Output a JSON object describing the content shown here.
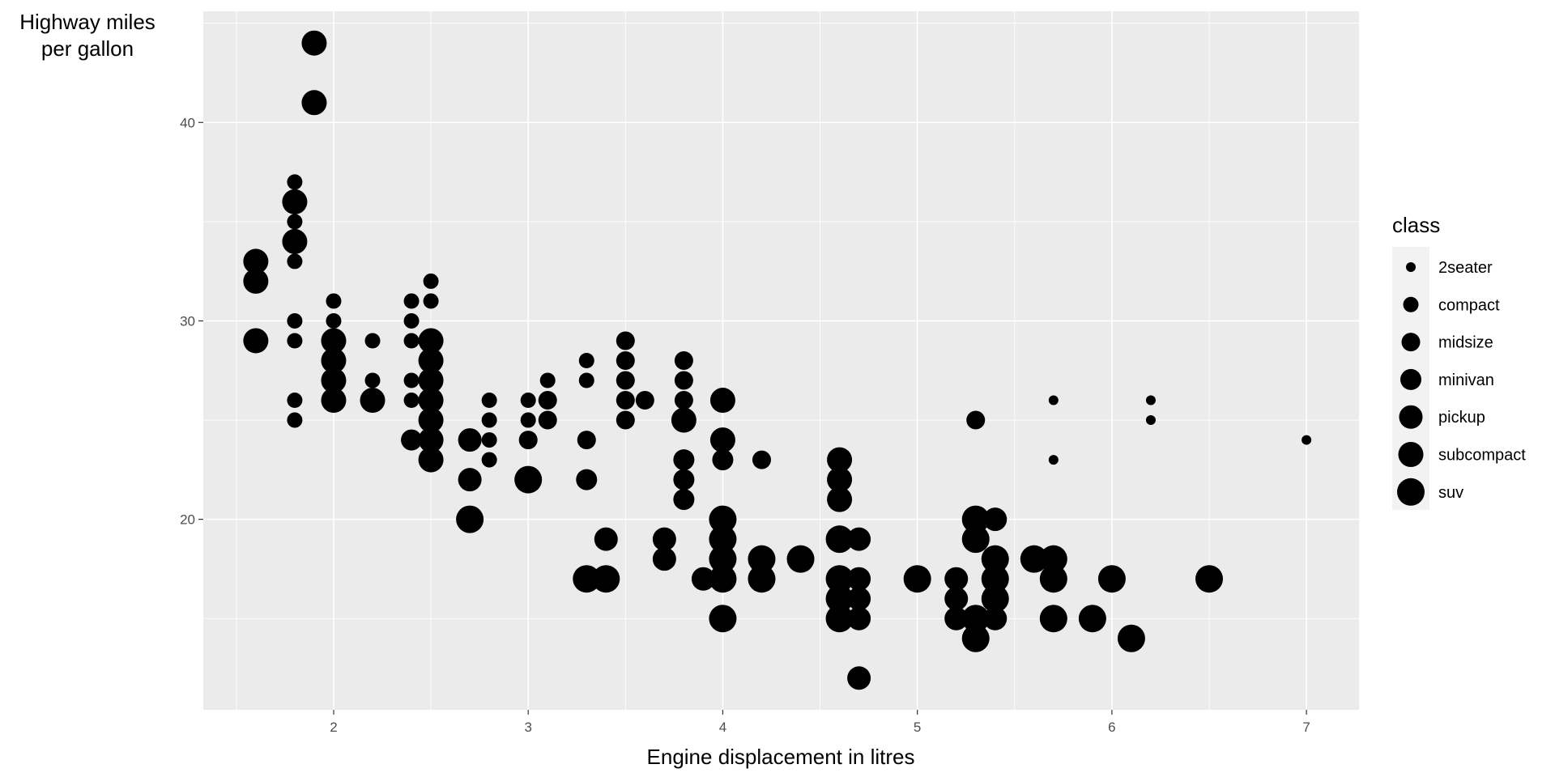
{
  "chart_data": {
    "type": "scatter",
    "title": "",
    "xlabel": "Engine displacement in litres",
    "ylabel_lines": [
      "Highway miles",
      "per gallon"
    ],
    "xlim": [
      1.33,
      7.27
    ],
    "ylim": [
      10.4,
      45.6
    ],
    "xticks": [
      2,
      3,
      4,
      5,
      6,
      7
    ],
    "yticks": [
      20,
      30,
      40
    ],
    "grid": true,
    "size_legend": {
      "title": "class",
      "placement": "right",
      "entries": [
        "2seater",
        "compact",
        "midsize",
        "minivan",
        "pickup",
        "subcompact",
        "suv"
      ]
    },
    "colors": {
      "panel": "#ebebeb",
      "point": "#000000",
      "grid": "#ffffff",
      "tick": "#4d4d4d"
    },
    "points": [
      [
        1.6,
        33,
        "subcompact"
      ],
      [
        1.6,
        32,
        "subcompact"
      ],
      [
        1.6,
        29,
        "subcompact"
      ],
      [
        1.8,
        29,
        "compact"
      ],
      [
        1.8,
        26,
        "compact"
      ],
      [
        1.8,
        25,
        "compact"
      ],
      [
        1.8,
        37,
        "compact"
      ],
      [
        1.8,
        35,
        "compact"
      ],
      [
        1.8,
        33,
        "compact"
      ],
      [
        1.8,
        30,
        "compact"
      ],
      [
        1.8,
        36,
        "subcompact"
      ],
      [
        1.8,
        34,
        "subcompact"
      ],
      [
        1.9,
        44,
        "subcompact"
      ],
      [
        1.9,
        41,
        "subcompact"
      ],
      [
        2.0,
        31,
        "compact"
      ],
      [
        2.0,
        30,
        "compact"
      ],
      [
        2.0,
        29,
        "compact"
      ],
      [
        2.0,
        28,
        "compact"
      ],
      [
        2.0,
        27,
        "compact"
      ],
      [
        2.0,
        26,
        "compact"
      ],
      [
        2.0,
        29,
        "subcompact"
      ],
      [
        2.0,
        28,
        "subcompact"
      ],
      [
        2.0,
        27,
        "subcompact"
      ],
      [
        2.0,
        26,
        "subcompact"
      ],
      [
        2.2,
        29,
        "compact"
      ],
      [
        2.2,
        27,
        "compact"
      ],
      [
        2.2,
        26,
        "midsize"
      ],
      [
        2.2,
        26,
        "subcompact"
      ],
      [
        2.4,
        31,
        "compact"
      ],
      [
        2.4,
        30,
        "compact"
      ],
      [
        2.4,
        29,
        "compact"
      ],
      [
        2.4,
        27,
        "compact"
      ],
      [
        2.4,
        26,
        "compact"
      ],
      [
        2.4,
        24,
        "minivan"
      ],
      [
        2.5,
        32,
        "compact"
      ],
      [
        2.5,
        31,
        "compact"
      ],
      [
        2.5,
        29,
        "subcompact"
      ],
      [
        2.5,
        28,
        "subcompact"
      ],
      [
        2.5,
        27,
        "subcompact"
      ],
      [
        2.5,
        26,
        "subcompact"
      ],
      [
        2.5,
        25,
        "subcompact"
      ],
      [
        2.5,
        24,
        "subcompact"
      ],
      [
        2.5,
        23,
        "subcompact"
      ],
      [
        2.7,
        24,
        "pickup"
      ],
      [
        2.7,
        22,
        "pickup"
      ],
      [
        2.7,
        20,
        "suv"
      ],
      [
        2.8,
        26,
        "compact"
      ],
      [
        2.8,
        25,
        "compact"
      ],
      [
        2.8,
        24,
        "compact"
      ],
      [
        2.8,
        23,
        "compact"
      ],
      [
        3.0,
        26,
        "compact"
      ],
      [
        3.0,
        25,
        "compact"
      ],
      [
        3.0,
        24,
        "midsize"
      ],
      [
        3.0,
        22,
        "minivan"
      ],
      [
        3.0,
        22,
        "suv"
      ],
      [
        3.1,
        27,
        "compact"
      ],
      [
        3.1,
        26,
        "midsize"
      ],
      [
        3.1,
        25,
        "midsize"
      ],
      [
        3.3,
        28,
        "compact"
      ],
      [
        3.3,
        27,
        "compact"
      ],
      [
        3.3,
        24,
        "midsize"
      ],
      [
        3.3,
        22,
        "minivan"
      ],
      [
        3.3,
        17,
        "suv"
      ],
      [
        3.4,
        19,
        "pickup"
      ],
      [
        3.4,
        17,
        "suv"
      ],
      [
        3.5,
        29,
        "midsize"
      ],
      [
        3.5,
        28,
        "midsize"
      ],
      [
        3.5,
        27,
        "midsize"
      ],
      [
        3.5,
        26,
        "midsize"
      ],
      [
        3.5,
        25,
        "midsize"
      ],
      [
        3.6,
        26,
        "midsize"
      ],
      [
        3.7,
        19,
        "pickup"
      ],
      [
        3.7,
        18,
        "pickup"
      ],
      [
        3.8,
        28,
        "midsize"
      ],
      [
        3.8,
        27,
        "midsize"
      ],
      [
        3.8,
        26,
        "midsize"
      ],
      [
        3.8,
        25,
        "subcompact"
      ],
      [
        3.8,
        23,
        "minivan"
      ],
      [
        3.8,
        22,
        "minivan"
      ],
      [
        3.8,
        21,
        "minivan"
      ],
      [
        3.9,
        17,
        "pickup"
      ],
      [
        4.0,
        26,
        "subcompact"
      ],
      [
        4.0,
        24,
        "subcompact"
      ],
      [
        4.0,
        23,
        "minivan"
      ],
      [
        4.0,
        20,
        "suv"
      ],
      [
        4.0,
        19,
        "suv"
      ],
      [
        4.0,
        18,
        "suv"
      ],
      [
        4.0,
        17,
        "suv"
      ],
      [
        4.0,
        15,
        "suv"
      ],
      [
        4.2,
        23,
        "midsize"
      ],
      [
        4.2,
        18,
        "suv"
      ],
      [
        4.2,
        17,
        "suv"
      ],
      [
        4.4,
        18,
        "suv"
      ],
      [
        4.6,
        23,
        "subcompact"
      ],
      [
        4.6,
        22,
        "subcompact"
      ],
      [
        4.6,
        21,
        "subcompact"
      ],
      [
        4.6,
        19,
        "suv"
      ],
      [
        4.6,
        17,
        "suv"
      ],
      [
        4.6,
        16,
        "suv"
      ],
      [
        4.6,
        15,
        "suv"
      ],
      [
        4.7,
        19,
        "pickup"
      ],
      [
        4.7,
        17,
        "pickup"
      ],
      [
        4.7,
        16,
        "pickup"
      ],
      [
        4.7,
        15,
        "pickup"
      ],
      [
        4.7,
        12,
        "pickup"
      ],
      [
        5.0,
        17,
        "suv"
      ],
      [
        5.2,
        17,
        "pickup"
      ],
      [
        5.2,
        16,
        "pickup"
      ],
      [
        5.2,
        15,
        "pickup"
      ],
      [
        5.3,
        25,
        "midsize"
      ],
      [
        5.3,
        20,
        "suv"
      ],
      [
        5.3,
        19,
        "suv"
      ],
      [
        5.3,
        15,
        "suv"
      ],
      [
        5.3,
        14,
        "suv"
      ],
      [
        5.4,
        20,
        "pickup"
      ],
      [
        5.4,
        18,
        "suv"
      ],
      [
        5.4,
        17,
        "suv"
      ],
      [
        5.4,
        16,
        "suv"
      ],
      [
        5.4,
        15,
        "pickup"
      ],
      [
        5.6,
        18,
        "suv"
      ],
      [
        5.7,
        26,
        "2seater"
      ],
      [
        5.7,
        23,
        "2seater"
      ],
      [
        5.7,
        18,
        "suv"
      ],
      [
        5.7,
        17,
        "suv"
      ],
      [
        5.7,
        15,
        "suv"
      ],
      [
        5.9,
        15,
        "suv"
      ],
      [
        6.0,
        17,
        "suv"
      ],
      [
        6.1,
        14,
        "suv"
      ],
      [
        6.2,
        26,
        "2seater"
      ],
      [
        6.2,
        25,
        "2seater"
      ],
      [
        6.5,
        17,
        "suv"
      ],
      [
        7.0,
        24,
        "2seater"
      ]
    ]
  }
}
